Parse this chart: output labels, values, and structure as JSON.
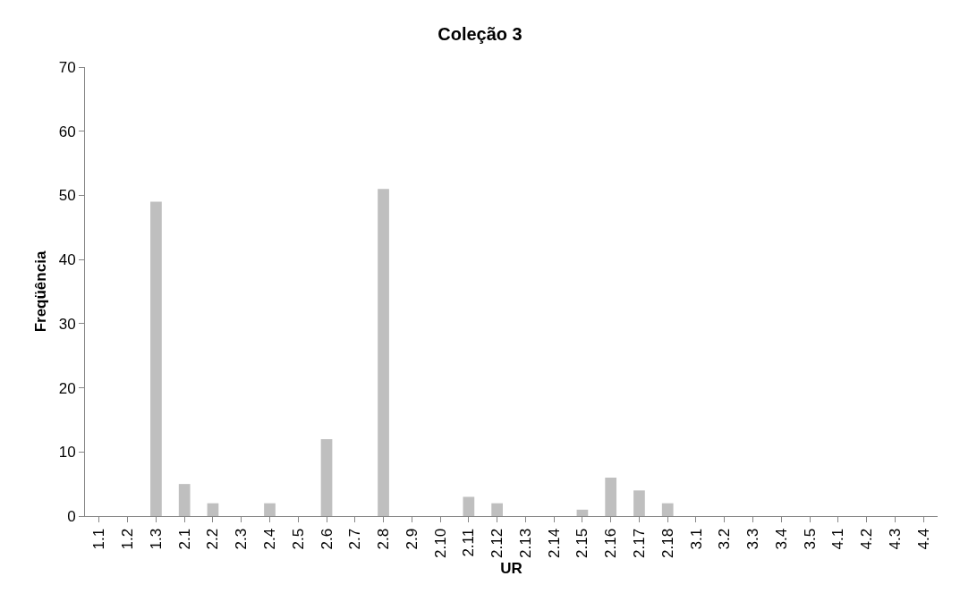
{
  "chart_data": {
    "type": "bar",
    "title": "Coleção 3",
    "xlabel": "UR",
    "ylabel": "Freqüência",
    "categories": [
      "1.1",
      "1.2",
      "1.3",
      "2.1",
      "2.2",
      "2.3",
      "2.4",
      "2.5",
      "2.6",
      "2.7",
      "2.8",
      "2.9",
      "2.10",
      "2.11",
      "2.12",
      "2.13",
      "2.14",
      "2.15",
      "2.16",
      "2.17",
      "2.18",
      "3.1",
      "3.2",
      "3.3",
      "3.4",
      "3.5",
      "4.1",
      "4.2",
      "4.3",
      "4.4"
    ],
    "values": [
      0,
      0,
      49,
      5,
      2,
      0,
      2,
      0,
      12,
      0,
      51,
      0,
      0,
      3,
      2,
      0,
      0,
      1,
      6,
      4,
      2,
      0,
      0,
      0,
      0,
      0,
      0,
      0,
      0,
      0
    ],
    "color": "#bfbfbf",
    "ylim": [
      0,
      70
    ],
    "yticks": [
      0,
      10,
      20,
      30,
      40,
      50,
      60,
      70
    ],
    "grid": false,
    "legend": false
  }
}
